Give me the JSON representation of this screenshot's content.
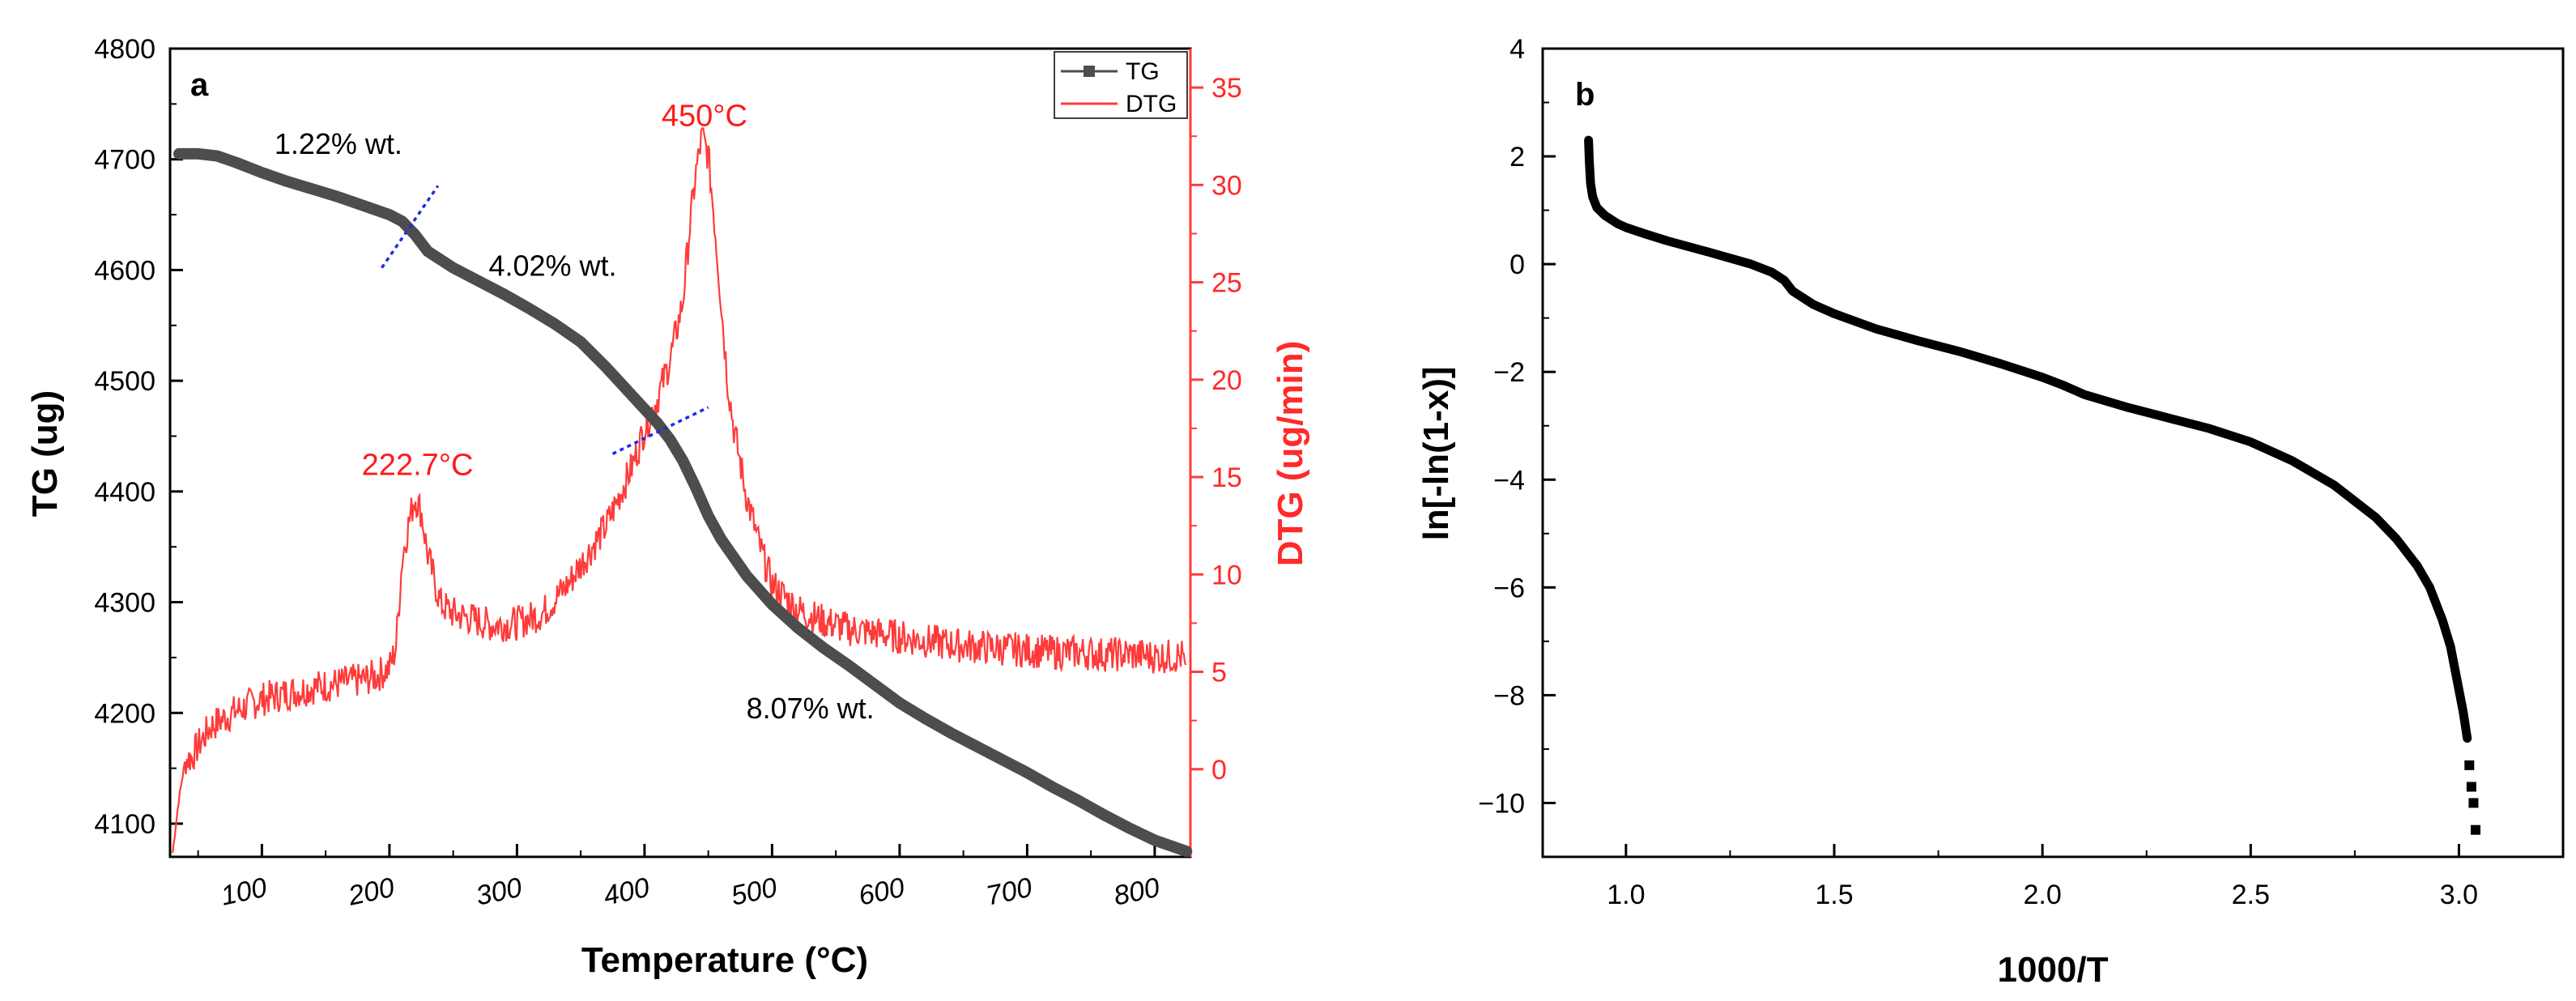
{
  "chart_data": [
    {
      "panel": "a",
      "type": "line",
      "xlabel": "Temperature (°C)",
      "ylabel": "TG (ug)",
      "y2label": "DTG (ug/min)",
      "xlim": [
        28,
        828
      ],
      "ylim": [
        4070,
        4800
      ],
      "y2lim": [
        -4.5,
        37
      ],
      "xticks": [
        100,
        200,
        300,
        400,
        500,
        600,
        700,
        800
      ],
      "yticks": [
        4100,
        4200,
        4300,
        4400,
        4500,
        4600,
        4700,
        4800
      ],
      "y2ticks": [
        0,
        5,
        10,
        15,
        20,
        25,
        30,
        35
      ],
      "legend": [
        "TG",
        "DTG"
      ],
      "series": [
        {
          "name": "TG",
          "color": "#4d4d4d",
          "axis": "left",
          "x": [
            35,
            50,
            65,
            80,
            100,
            120,
            140,
            160,
            180,
            200,
            210,
            220,
            230,
            250,
            270,
            290,
            310,
            330,
            350,
            370,
            390,
            410,
            420,
            430,
            440,
            450,
            460,
            480,
            500,
            520,
            540,
            560,
            580,
            600,
            620,
            640,
            660,
            680,
            700,
            720,
            740,
            760,
            780,
            800,
            825
          ],
          "values": [
            4705,
            4705,
            4703,
            4697,
            4688,
            4680,
            4673,
            4666,
            4658,
            4650,
            4644,
            4632,
            4617,
            4602,
            4590,
            4578,
            4565,
            4551,
            4535,
            4512,
            4487,
            4462,
            4447,
            4428,
            4404,
            4378,
            4357,
            4324,
            4298,
            4277,
            4259,
            4243,
            4226,
            4209,
            4195,
            4182,
            4170,
            4158,
            4146,
            4133,
            4121,
            4108,
            4096,
            4085,
            4075
          ]
        },
        {
          "name": "DTG",
          "color": "#ff3b3b",
          "axis": "right",
          "x": [
            30,
            35,
            40,
            45,
            50,
            60,
            70,
            80,
            100,
            120,
            140,
            160,
            180,
            190,
            200,
            205,
            210,
            215,
            220,
            225,
            230,
            240,
            250,
            260,
            270,
            280,
            300,
            320,
            340,
            350,
            360,
            370,
            380,
            390,
            400,
            410,
            420,
            430,
            435,
            440,
            445,
            450,
            455,
            460,
            465,
            470,
            480,
            490,
            500,
            520,
            540,
            560,
            580,
            600,
            620,
            640,
            660,
            680,
            700,
            720,
            740,
            760,
            780,
            800,
            822,
            825
          ],
          "values": [
            -4.3,
            -1.5,
            0.5,
            0.6,
            1.2,
            2.2,
            2.6,
            3.0,
            3.6,
            3.9,
            4.2,
            4.4,
            4.6,
            4.8,
            5.2,
            6.2,
            10.8,
            12.6,
            14.0,
            13.2,
            11.0,
            8.5,
            8.0,
            7.8,
            7.6,
            7.4,
            7.5,
            8.0,
            9.5,
            10.5,
            11.5,
            12.5,
            14.0,
            15.5,
            17.5,
            19.0,
            21.0,
            24.0,
            27.5,
            30.5,
            32.5,
            31.5,
            28.0,
            24.0,
            20.0,
            17.5,
            14.0,
            11.5,
            9.5,
            8.2,
            7.6,
            7.2,
            7.0,
            6.8,
            6.6,
            6.4,
            6.3,
            6.2,
            6.1,
            6.0,
            6.0,
            5.9,
            5.9,
            5.8,
            5.8,
            4.5
          ]
        }
      ],
      "annotations": [
        {
          "text": "1.22% wt.",
          "x": 160,
          "y": 4705
        },
        {
          "text": "4.02% wt.",
          "x": 328,
          "y": 4595
        },
        {
          "text": "8.07% wt.",
          "x": 530,
          "y": 4195
        },
        {
          "text": "450°C",
          "x": 447,
          "y": 4730,
          "color": "#ff1a1a"
        },
        {
          "text": "222.7°C",
          "x": 222,
          "y": 4415,
          "color": "#ff1a1a"
        }
      ],
      "dividers": [
        {
          "x1": 194,
          "y1": 4602,
          "x2": 238,
          "y2": 4676
        },
        {
          "x1": 375,
          "y1": 4434,
          "x2": 450,
          "y2": 4476
        }
      ]
    },
    {
      "panel": "b",
      "type": "scatter",
      "xlabel": "1000/T",
      "ylabel": "ln[-ln(1-x)]",
      "xlim": [
        0.8,
        3.25
      ],
      "ylim": [
        -11,
        4
      ],
      "xticks": [
        1.0,
        1.5,
        2.0,
        2.5,
        3.0
      ],
      "xtick_labels": [
        "1.0",
        "1.5",
        "2.0",
        "2.5",
        "3.0"
      ],
      "yticks": [
        -10,
        -8,
        -6,
        -4,
        -2,
        0,
        2,
        4
      ],
      "ytick_labels": [
        "−10",
        "−8",
        "−6",
        "−4",
        "−2",
        "0",
        "2",
        "4"
      ],
      "series": [
        {
          "name": "ln[-ln(1-x)]",
          "color": "#000000",
          "x": [
            0.91,
            0.912,
            0.915,
            0.92,
            0.93,
            0.95,
            0.98,
            1.0,
            1.05,
            1.1,
            1.2,
            1.3,
            1.35,
            1.38,
            1.4,
            1.45,
            1.5,
            1.6,
            1.7,
            1.8,
            1.9,
            2.0,
            2.05,
            2.08,
            2.1,
            2.2,
            2.3,
            2.4,
            2.5,
            2.6,
            2.7,
            2.75,
            2.8,
            2.85,
            2.9,
            2.93,
            2.96,
            2.98,
            3.0,
            3.01,
            3.02,
            3.025,
            3.03,
            3.035,
            3.04
          ],
          "values": [
            2.3,
            1.9,
            1.5,
            1.25,
            1.05,
            0.9,
            0.75,
            0.68,
            0.55,
            0.43,
            0.22,
            0.0,
            -0.15,
            -0.3,
            -0.5,
            -0.75,
            -0.92,
            -1.2,
            -1.42,
            -1.62,
            -1.85,
            -2.1,
            -2.25,
            -2.35,
            -2.42,
            -2.65,
            -2.85,
            -3.05,
            -3.3,
            -3.65,
            -4.1,
            -4.4,
            -4.7,
            -5.1,
            -5.6,
            -6.0,
            -6.6,
            -7.1,
            -7.9,
            -8.3,
            -8.8,
            -9.3,
            -9.7,
            -10.0,
            -10.5
          ]
        }
      ]
    }
  ]
}
